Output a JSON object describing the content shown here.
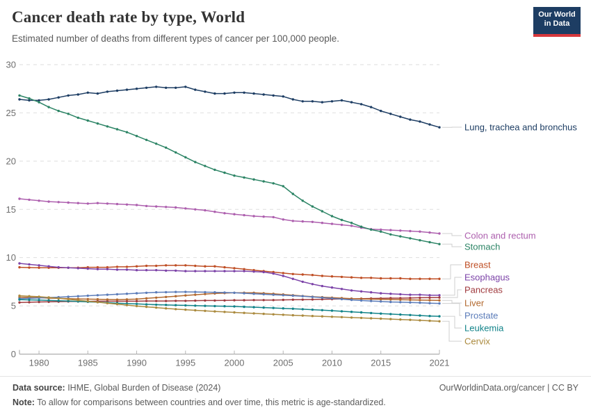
{
  "header": {
    "logo": {
      "line1": "Our World",
      "line2": "in Data"
    }
  },
  "chart_data": {
    "type": "line",
    "title": "Cancer death rate by type, World",
    "subtitle": "Estimated number of deaths from different types of cancer per 100,000 people.",
    "xlabel": "",
    "ylabel": "",
    "ylim": [
      0,
      30
    ],
    "yticks": [
      0,
      5,
      10,
      15,
      20,
      25,
      30
    ],
    "xticks": [
      1980,
      1985,
      1990,
      1995,
      2000,
      2005,
      2010,
      2015,
      2021
    ],
    "grid": "horizontal-dashed",
    "legend_position": "right-inline-labels",
    "markers": true,
    "x": [
      1978,
      1979,
      1980,
      1981,
      1982,
      1983,
      1984,
      1985,
      1986,
      1987,
      1988,
      1989,
      1990,
      1991,
      1992,
      1993,
      1994,
      1995,
      1996,
      1997,
      1998,
      1999,
      2000,
      2001,
      2002,
      2003,
      2004,
      2005,
      2006,
      2007,
      2008,
      2009,
      2010,
      2011,
      2012,
      2013,
      2014,
      2015,
      2016,
      2017,
      2018,
      2019,
      2020,
      2021
    ],
    "series": [
      {
        "name": "Lung, trachea and bronchus",
        "color": "#1d3d63",
        "values": [
          26.4,
          26.3,
          26.3,
          26.4,
          26.6,
          26.8,
          26.9,
          27.1,
          27.0,
          27.2,
          27.3,
          27.4,
          27.5,
          27.6,
          27.7,
          27.6,
          27.6,
          27.7,
          27.4,
          27.2,
          27.0,
          27.0,
          27.1,
          27.1,
          27.0,
          26.9,
          26.8,
          26.7,
          26.4,
          26.2,
          26.2,
          26.1,
          26.2,
          26.3,
          26.1,
          25.9,
          25.6,
          25.2,
          24.9,
          24.6,
          24.3,
          24.1,
          23.8,
          23.5
        ]
      },
      {
        "name": "Colon and rectum",
        "color": "#ad5fae",
        "values": [
          16.1,
          16.0,
          15.9,
          15.8,
          15.75,
          15.7,
          15.65,
          15.6,
          15.65,
          15.6,
          15.55,
          15.5,
          15.45,
          15.35,
          15.3,
          15.25,
          15.2,
          15.1,
          15.0,
          14.9,
          14.75,
          14.6,
          14.5,
          14.4,
          14.3,
          14.25,
          14.2,
          13.95,
          13.8,
          13.75,
          13.7,
          13.6,
          13.5,
          13.4,
          13.3,
          13.1,
          12.95,
          12.9,
          12.85,
          12.8,
          12.75,
          12.7,
          12.6,
          12.5
        ]
      },
      {
        "name": "Stomach",
        "color": "#2c8465",
        "values": [
          26.8,
          26.5,
          26.1,
          25.6,
          25.2,
          24.9,
          24.5,
          24.2,
          23.9,
          23.6,
          23.3,
          23.0,
          22.6,
          22.2,
          21.8,
          21.4,
          20.9,
          20.4,
          19.9,
          19.5,
          19.1,
          18.8,
          18.5,
          18.3,
          18.1,
          17.9,
          17.7,
          17.4,
          16.6,
          15.9,
          15.3,
          14.8,
          14.3,
          13.9,
          13.6,
          13.2,
          12.9,
          12.7,
          12.4,
          12.2,
          12.0,
          11.8,
          11.6,
          11.4
        ]
      },
      {
        "name": "Breast",
        "color": "#bf4e24",
        "values": [
          9.0,
          8.97,
          8.95,
          8.95,
          8.95,
          8.95,
          8.95,
          9.0,
          9.0,
          9.0,
          9.05,
          9.05,
          9.1,
          9.15,
          9.15,
          9.2,
          9.2,
          9.2,
          9.15,
          9.1,
          9.1,
          9.0,
          8.9,
          8.8,
          8.7,
          8.6,
          8.5,
          8.4,
          8.3,
          8.25,
          8.2,
          8.1,
          8.05,
          8.0,
          7.95,
          7.9,
          7.9,
          7.85,
          7.85,
          7.85,
          7.8,
          7.8,
          7.8,
          7.8
        ]
      },
      {
        "name": "Esophagus",
        "color": "#7c43a8",
        "values": [
          9.4,
          9.3,
          9.2,
          9.1,
          9.0,
          8.95,
          8.9,
          8.85,
          8.8,
          8.8,
          8.75,
          8.75,
          8.7,
          8.7,
          8.7,
          8.65,
          8.65,
          8.6,
          8.6,
          8.6,
          8.6,
          8.6,
          8.6,
          8.6,
          8.55,
          8.5,
          8.35,
          8.1,
          7.8,
          7.5,
          7.25,
          7.05,
          6.9,
          6.75,
          6.6,
          6.5,
          6.4,
          6.3,
          6.25,
          6.2,
          6.15,
          6.15,
          6.1,
          6.1
        ]
      },
      {
        "name": "Pancreas",
        "color": "#a03a3e",
        "values": [
          5.35,
          5.37,
          5.4,
          5.42,
          5.44,
          5.45,
          5.46,
          5.47,
          5.48,
          5.48,
          5.48,
          5.48,
          5.48,
          5.5,
          5.5,
          5.5,
          5.52,
          5.52,
          5.54,
          5.55,
          5.55,
          5.56,
          5.58,
          5.58,
          5.6,
          5.6,
          5.6,
          5.62,
          5.64,
          5.65,
          5.66,
          5.68,
          5.7,
          5.72,
          5.74,
          5.75,
          5.76,
          5.78,
          5.8,
          5.8,
          5.82,
          5.84,
          5.85,
          5.86
        ]
      },
      {
        "name": "Liver",
        "color": "#b2682e",
        "values": [
          5.9,
          5.88,
          5.85,
          5.8,
          5.78,
          5.75,
          5.72,
          5.7,
          5.68,
          5.66,
          5.65,
          5.67,
          5.7,
          5.78,
          5.85,
          5.92,
          6.0,
          6.08,
          6.15,
          6.22,
          6.28,
          6.32,
          6.35,
          6.36,
          6.35,
          6.3,
          6.25,
          6.18,
          6.1,
          6.02,
          5.95,
          5.9,
          5.85,
          5.8,
          5.75,
          5.72,
          5.7,
          5.68,
          5.66,
          5.64,
          5.62,
          5.6,
          5.58,
          5.57
        ]
      },
      {
        "name": "Prostate",
        "color": "#5b7cb9",
        "values": [
          5.75,
          5.78,
          5.82,
          5.86,
          5.9,
          5.95,
          6.0,
          6.05,
          6.1,
          6.15,
          6.2,
          6.25,
          6.3,
          6.35,
          6.4,
          6.42,
          6.44,
          6.45,
          6.44,
          6.42,
          6.4,
          6.38,
          6.35,
          6.3,
          6.25,
          6.2,
          6.15,
          6.1,
          6.05,
          6.0,
          5.92,
          5.85,
          5.78,
          5.7,
          5.62,
          5.55,
          5.5,
          5.45,
          5.4,
          5.38,
          5.35,
          5.32,
          5.28,
          5.25
        ]
      },
      {
        "name": "Leukemia",
        "color": "#118389",
        "values": [
          5.65,
          5.62,
          5.6,
          5.57,
          5.53,
          5.5,
          5.46,
          5.42,
          5.38,
          5.33,
          5.28,
          5.24,
          5.2,
          5.16,
          5.12,
          5.1,
          5.07,
          5.05,
          5.02,
          5.0,
          4.98,
          4.96,
          4.94,
          4.9,
          4.86,
          4.82,
          4.78,
          4.74,
          4.7,
          4.65,
          4.6,
          4.55,
          4.5,
          4.44,
          4.38,
          4.32,
          4.26,
          4.2,
          4.15,
          4.1,
          4.05,
          4.0,
          3.95,
          3.92
        ]
      },
      {
        "name": "Cervix",
        "color": "#ab8a3e",
        "values": [
          6.05,
          6.0,
          5.95,
          5.87,
          5.78,
          5.68,
          5.58,
          5.48,
          5.38,
          5.28,
          5.18,
          5.08,
          4.98,
          4.9,
          4.82,
          4.74,
          4.66,
          4.6,
          4.54,
          4.48,
          4.42,
          4.37,
          4.32,
          4.27,
          4.22,
          4.17,
          4.12,
          4.08,
          4.03,
          3.99,
          3.95,
          3.91,
          3.87,
          3.83,
          3.79,
          3.75,
          3.71,
          3.67,
          3.63,
          3.59,
          3.55,
          3.5,
          3.45,
          3.4
        ]
      }
    ]
  },
  "footer": {
    "source_label": "Data source:",
    "source_text": " IHME, Global Burden of Disease (2024)",
    "link": "OurWorldinData.org/cancer | CC BY",
    "note_label": "Note:",
    "note_text": " To allow for comparisons between countries and over time, this metric is age-standardized."
  }
}
